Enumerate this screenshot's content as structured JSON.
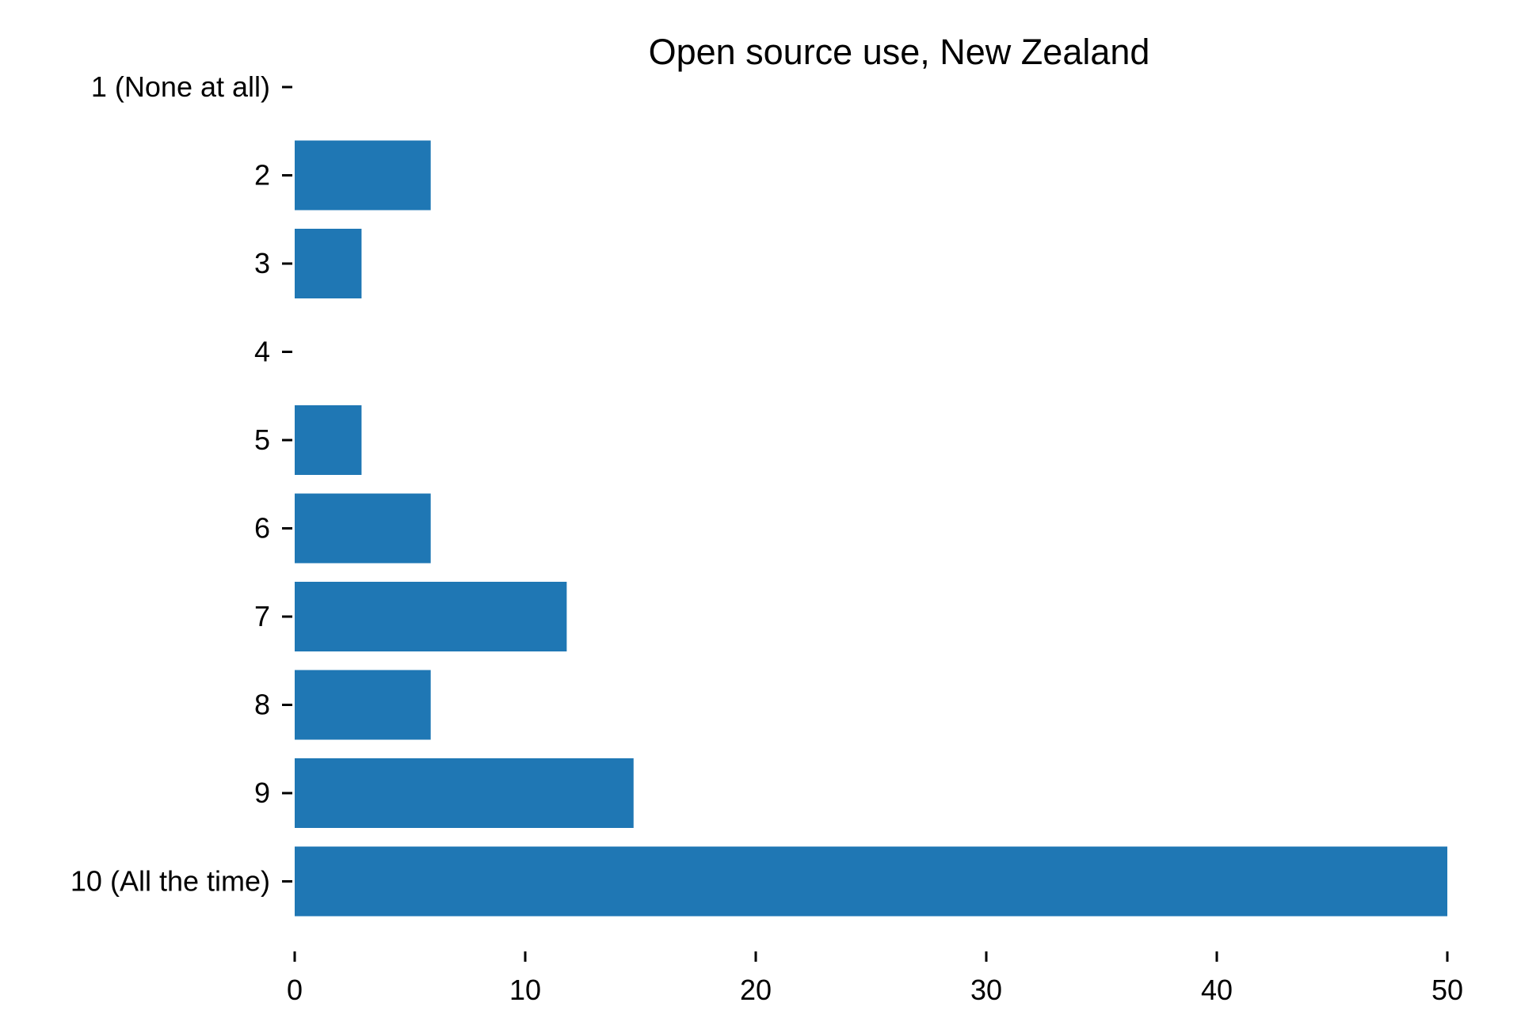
{
  "chart_data": {
    "type": "bar",
    "orientation": "horizontal",
    "title": "Open source use, New Zealand",
    "xlabel": "",
    "ylabel": "",
    "categories": [
      "1 (None at all)",
      "2",
      "3",
      "4",
      "5",
      "6",
      "7",
      "8",
      "9",
      "10 (All the time)"
    ],
    "values": [
      0,
      5.9,
      2.9,
      0,
      2.9,
      5.9,
      11.8,
      5.9,
      14.7,
      50.0
    ],
    "xlim": [
      0,
      50
    ],
    "xticks": [
      "0",
      "10",
      "20",
      "30",
      "40",
      "50"
    ],
    "grid": false,
    "bar_color": "#1f77b4"
  }
}
